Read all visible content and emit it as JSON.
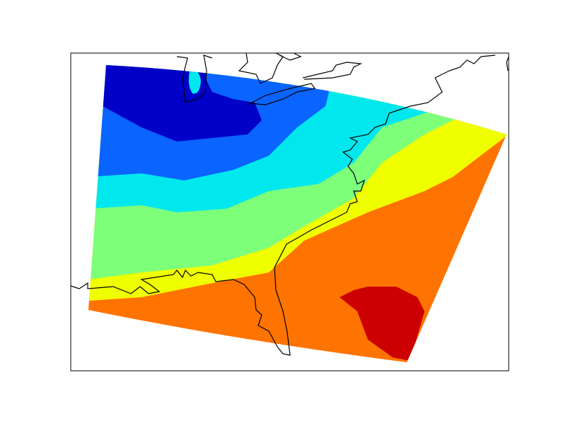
{
  "chart_data": {
    "type": "contourf",
    "colors": [
      "#ff7300",
      "#f0ff00",
      "#7dff7a",
      "#00e8ee",
      "#0a64ff",
      "#0000c8",
      "#cc0000"
    ]
  }
}
